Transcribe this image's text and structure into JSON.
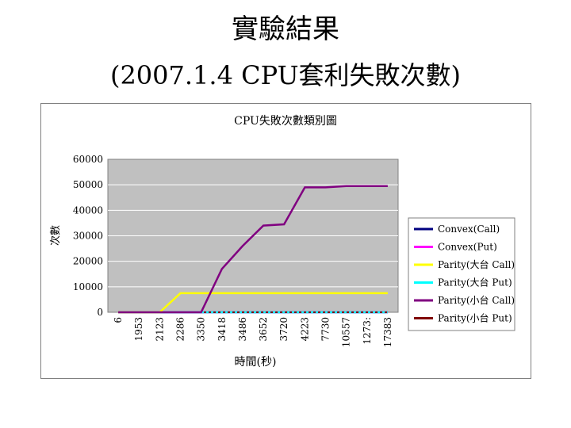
{
  "slide": {
    "title": "實驗結果",
    "subtitle": "(2007.1.4 CPU套利失敗次數)"
  },
  "chart_data": {
    "type": "line",
    "title": "CPU失敗次數類別圖",
    "xlabel": "時間(秒)",
    "ylabel": "次數",
    "ylim": [
      0,
      60000
    ],
    "yticks": [
      0,
      10000,
      20000,
      30000,
      40000,
      50000,
      60000
    ],
    "categories": [
      "6",
      "1953",
      "2123",
      "2286",
      "3350",
      "3418",
      "3486",
      "3652",
      "3720",
      "4223",
      "7730",
      "10557",
      "1273:",
      "17383"
    ],
    "grid": true,
    "legend_position": "right",
    "colors": {
      "plot_bg": "#c0c0c0",
      "gridline": "#ffffff"
    },
    "series": [
      {
        "name": "Convex(Call)",
        "color": "#000080",
        "values": [
          0,
          0,
          0,
          0,
          0,
          0,
          0,
          0,
          0,
          0,
          0,
          0,
          0,
          0
        ]
      },
      {
        "name": "Convex(Put)",
        "color": "#ff00ff",
        "values": [
          0,
          0,
          0,
          0,
          0,
          0,
          0,
          0,
          0,
          0,
          0,
          0,
          0,
          0
        ]
      },
      {
        "name": "Parity(大台 Call)",
        "color": "#ffff00",
        "values": [
          0,
          0,
          0,
          7500,
          7500,
          7500,
          7500,
          7500,
          7500,
          7500,
          7500,
          7500,
          7500,
          7500
        ]
      },
      {
        "name": "Parity(大台 Put)",
        "color": "#00ffff",
        "values": [
          0,
          0,
          0,
          0,
          0,
          0,
          0,
          0,
          0,
          0,
          0,
          0,
          0,
          0
        ]
      },
      {
        "name": "Parity(小台 Call)",
        "color": "#800080",
        "values": [
          0,
          0,
          0,
          0,
          0,
          17000,
          26000,
          34000,
          34500,
          49000,
          49000,
          49500,
          49500,
          49500
        ]
      },
      {
        "name": "Parity(小台 Put)",
        "color": "#800000",
        "values": [
          0,
          0,
          0,
          0,
          0,
          0,
          0,
          0,
          0,
          0,
          0,
          0,
          0,
          0
        ]
      }
    ]
  }
}
